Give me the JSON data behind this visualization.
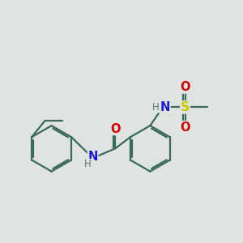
{
  "background_color": "#e0e4e0",
  "bond_color": "#3a6a5a",
  "bond_width": 1.6,
  "atom_colors": {
    "N": "#1a1acc",
    "O": "#cc0000",
    "S": "#cccc00",
    "H": "#607878"
  },
  "font_size_main": 10.5,
  "font_size_H": 8.5
}
